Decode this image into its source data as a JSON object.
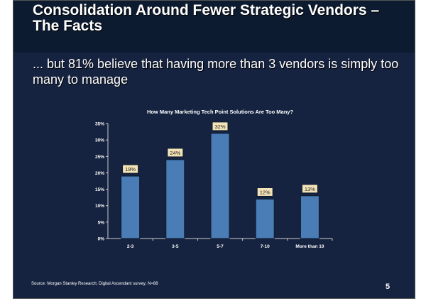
{
  "slide": {
    "title": "Consolidation Around Fewer Strategic Vendors – The Facts",
    "subtitle": "... but 81% believe that having more than 3 vendors is simply too many to manage",
    "source": "Source: Morgan Stanley Research; Digital Ascendant survey; N=88",
    "page_number": "5"
  },
  "chart_data": {
    "type": "bar",
    "title": "How Many Marketing Tech Point Solutions Are Too Many?",
    "categories": [
      "2-3",
      "3-5",
      "5-7",
      "7-10",
      "More than 10"
    ],
    "values": [
      19,
      24,
      32,
      12,
      13
    ],
    "data_labels": [
      "19%",
      "24%",
      "32%",
      "12%",
      "13%"
    ],
    "ylim": [
      0,
      35
    ],
    "yticks": [
      "0%",
      "5%",
      "10%",
      "15%",
      "20%",
      "25%",
      "30%",
      "35%"
    ],
    "xlabel": "",
    "ylabel": "",
    "grid": false,
    "colors": {
      "bar": "#4a7db5",
      "label_bg": "#f3e4b8",
      "background": "#162340"
    }
  }
}
